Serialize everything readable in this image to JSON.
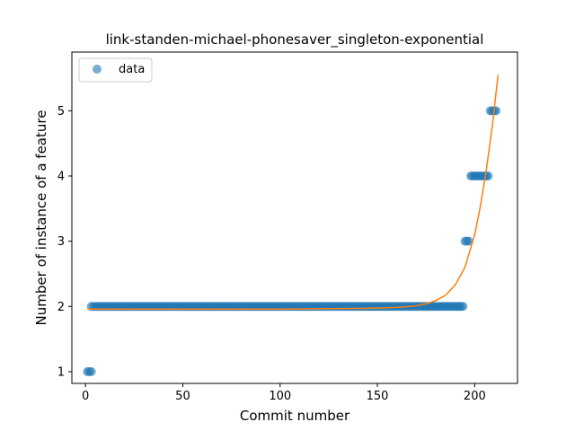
{
  "chart_data": {
    "type": "scatter",
    "title": "link-standen-michael-phonesaver_singleton-exponential",
    "xlabel": "Commit number",
    "ylabel": "Number of instance of a feature",
    "xlim": [
      -7,
      222
    ],
    "ylim": [
      0.82,
      5.9
    ],
    "x_ticks": [
      0,
      50,
      100,
      150,
      200
    ],
    "y_ticks": [
      1,
      2,
      3,
      4,
      5
    ],
    "grid": false,
    "legend": {
      "position": "top-left",
      "entries": [
        "data"
      ]
    },
    "series": [
      {
        "name": "data",
        "kind": "points",
        "color": "#1f77b4",
        "segments": [
          {
            "x_start": 1,
            "x_end": 3,
            "y": 1
          },
          {
            "x_start": 3,
            "x_end": 194,
            "y": 2
          },
          {
            "x_start": 195,
            "x_end": 197,
            "y": 3
          },
          {
            "x_start": 198,
            "x_end": 207,
            "y": 4
          },
          {
            "x_start": 208,
            "x_end": 211,
            "y": 5
          }
        ]
      },
      {
        "kind": "fit-line",
        "color": "#ff7f0e",
        "x": [
          1,
          20,
          40,
          60,
          80,
          100,
          120,
          140,
          150,
          160,
          165,
          170,
          175,
          180,
          185,
          190,
          195,
          200,
          203,
          206,
          209,
          212
        ],
        "y": [
          1.96,
          1.96,
          1.96,
          1.96,
          1.96,
          1.96,
          1.965,
          1.97,
          1.975,
          1.985,
          1.995,
          2.01,
          2.04,
          2.09,
          2.17,
          2.33,
          2.6,
          3.1,
          3.55,
          4.1,
          4.75,
          5.55
        ]
      }
    ]
  }
}
